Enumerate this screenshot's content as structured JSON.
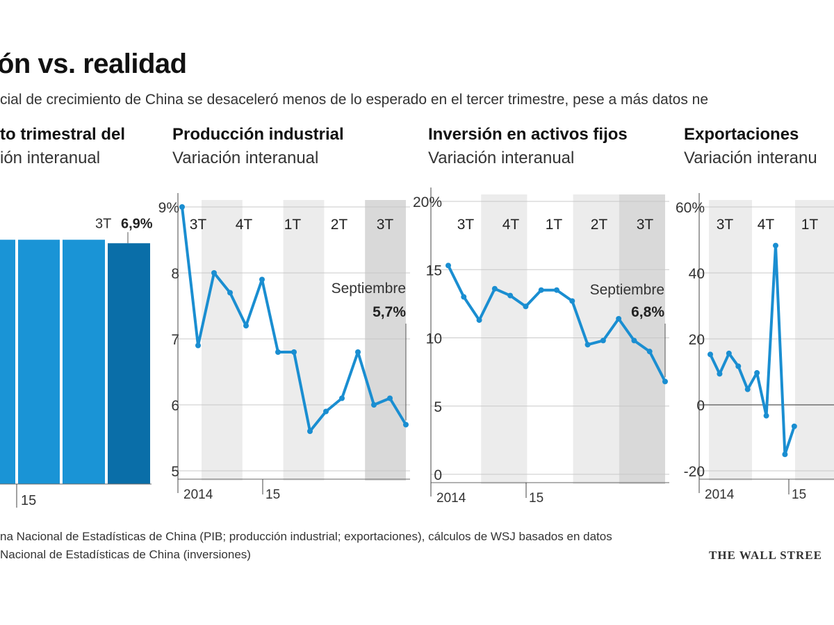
{
  "header": {
    "title": "ón vs. realidad",
    "subtitle": "cial de crecimiento de China se desaceleró menos de lo esperado en el tercer trimestre, pese a más datos ne"
  },
  "footer": {
    "source_line1": "na Nacional de Estadísticas de China (PIB; producción industrial; exportaciones), cálculos de WSJ basados en datos",
    "source_line2": "Nacional de Estadísticas de China (inversiones)",
    "logo": "THE WALL STREE"
  },
  "colors": {
    "bar_light": "#1a94d6",
    "bar_dark": "#0a6ea8",
    "line": "#1a8ed1",
    "shade": "#ececec",
    "shade_dark": "#d9d9d9",
    "grid": "#c8c8c8"
  },
  "chart_data": [
    {
      "type": "bar",
      "title": "to trimestral del",
      "subtitle": "ión interanual",
      "categories": [
        "",
        "",
        "",
        "3T"
      ],
      "values": [
        7.0,
        7.0,
        7.0,
        6.9
      ],
      "ylim": [
        0,
        7.9
      ],
      "annotation": {
        "label": "3T",
        "value": "6,9%"
      },
      "x_ticks": [
        "15"
      ]
    },
    {
      "type": "line",
      "title": "Producción industrial",
      "subtitle": "Variación interanual",
      "y_ticks": [
        "9%",
        "8",
        "7",
        "6",
        "5"
      ],
      "ylim": [
        5,
        9
      ],
      "quarters": [
        "3T",
        "4T",
        "1T",
        "2T",
        "3T"
      ],
      "values": [
        9.0,
        6.9,
        8.0,
        7.7,
        7.2,
        7.9,
        6.8,
        6.8,
        5.6,
        5.9,
        6.1,
        6.8,
        6.0,
        6.1,
        5.7
      ],
      "annotation": {
        "label": "Septiembre",
        "value": "5,7%"
      },
      "x_labels": [
        "2014",
        "15"
      ]
    },
    {
      "type": "line",
      "title": "Inversión en activos fijos",
      "subtitle": "Variación interanual",
      "y_ticks": [
        "20%",
        "15",
        "10",
        "5",
        "0"
      ],
      "ylim": [
        0,
        20
      ],
      "quarters": [
        "3T",
        "4T",
        "1T",
        "2T",
        "3T"
      ],
      "values": [
        15.3,
        13.0,
        11.3,
        13.6,
        13.1,
        12.3,
        13.5,
        13.5,
        12.7,
        9.5,
        9.8,
        11.4,
        9.8,
        9.0,
        6.8
      ],
      "annotation": {
        "label": "Septiembre",
        "value": "6,8%"
      },
      "x_labels": [
        "2014",
        "15"
      ]
    },
    {
      "type": "line",
      "title": "Exportaciones",
      "subtitle": "Variación interanu",
      "y_ticks": [
        "60%",
        "40",
        "20",
        "0",
        "-20"
      ],
      "ylim": [
        -20,
        60
      ],
      "quarters": [
        "3T",
        "4T",
        "1T"
      ],
      "values": [
        15.3,
        9.4,
        15.6,
        11.7,
        4.7,
        9.7,
        -3.3,
        48.3,
        -15.0,
        -6.5
      ],
      "x_labels": [
        "2014",
        "15"
      ]
    }
  ]
}
